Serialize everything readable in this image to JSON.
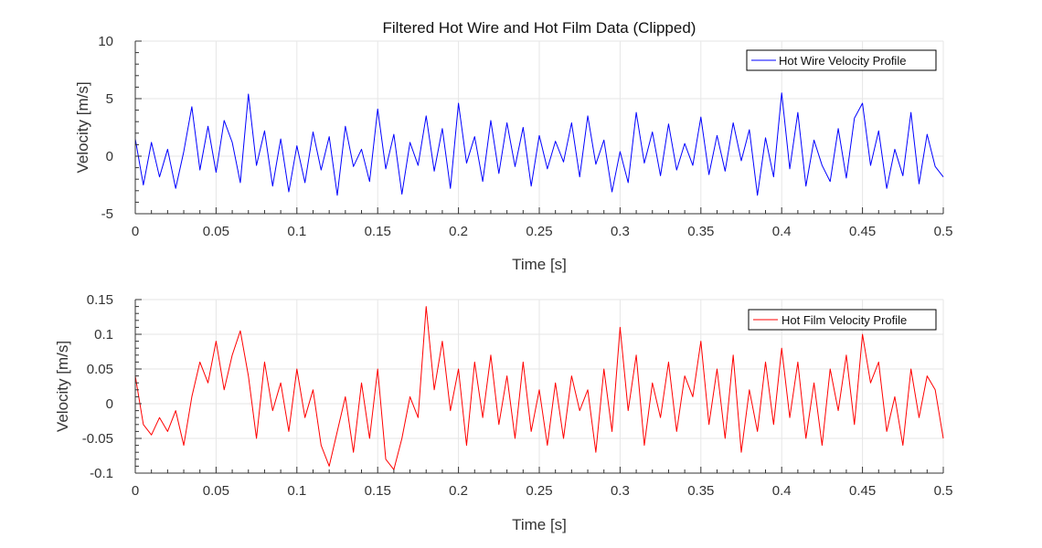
{
  "chart_data": [
    {
      "type": "line",
      "title": "Filtered Hot Wire and Hot Film Data (Clipped)",
      "xlabel": "Time [s]",
      "ylabel": "Velocity [m/s]",
      "xlim": [
        0,
        0.5
      ],
      "ylim": [
        -5,
        10
      ],
      "x_ticks": [
        "0",
        "0.05",
        "0.1",
        "0.15",
        "0.2",
        "0.25",
        "0.3",
        "0.35",
        "0.4",
        "0.45",
        "0.5"
      ],
      "y_ticks": [
        "-5",
        "0",
        "5",
        "10"
      ],
      "grid": true,
      "legend_position": "top-right",
      "series": [
        {
          "name": "Hot Wire Velocity Profile",
          "color": "#0000ff",
          "x": [
            0,
            0.005,
            0.01,
            0.015,
            0.02,
            0.025,
            0.03,
            0.035,
            0.04,
            0.045,
            0.05,
            0.055,
            0.06,
            0.065,
            0.07,
            0.075,
            0.08,
            0.085,
            0.09,
            0.095,
            0.1,
            0.105,
            0.11,
            0.115,
            0.12,
            0.125,
            0.13,
            0.135,
            0.14,
            0.145,
            0.15,
            0.155,
            0.16,
            0.165,
            0.17,
            0.175,
            0.18,
            0.185,
            0.19,
            0.195,
            0.2,
            0.205,
            0.21,
            0.215,
            0.22,
            0.225,
            0.23,
            0.235,
            0.24,
            0.245,
            0.25,
            0.255,
            0.26,
            0.265,
            0.27,
            0.275,
            0.28,
            0.285,
            0.29,
            0.295,
            0.3,
            0.305,
            0.31,
            0.315,
            0.32,
            0.325,
            0.33,
            0.335,
            0.34,
            0.345,
            0.35,
            0.355,
            0.36,
            0.365,
            0.37,
            0.375,
            0.38,
            0.385,
            0.39,
            0.395,
            0.4,
            0.405,
            0.41,
            0.415,
            0.42,
            0.425,
            0.43,
            0.435,
            0.44,
            0.445,
            0.45,
            0.455,
            0.46,
            0.465,
            0.47,
            0.475,
            0.48,
            0.485,
            0.49,
            0.495,
            0.5
          ],
          "values": [
            1.5,
            -2.5,
            1.2,
            -1.8,
            0.6,
            -2.8,
            0.4,
            4.3,
            -1.2,
            2.6,
            -1.4,
            3.1,
            1.2,
            -2.3,
            5.4,
            -0.8,
            2.2,
            -2.6,
            1.5,
            -3.1,
            0.9,
            -2.3,
            2.1,
            -1.2,
            1.7,
            -3.4,
            2.6,
            -0.9,
            0.6,
            -2.2,
            4.1,
            -1.1,
            1.9,
            -3.3,
            1.2,
            -0.8,
            3.5,
            -1.3,
            2.4,
            -2.8,
            4.6,
            -0.6,
            1.7,
            -2.2,
            3.1,
            -1.5,
            2.9,
            -0.9,
            2.5,
            -2.6,
            1.8,
            -1.1,
            1.3,
            -0.5,
            2.9,
            -1.8,
            3.5,
            -0.7,
            1.4,
            -3.1,
            0.4,
            -2.3,
            3.8,
            -0.6,
            2.1,
            -1.7,
            2.8,
            -1.2,
            1.1,
            -0.8,
            3.4,
            -1.6,
            1.8,
            -1.3,
            2.9,
            -0.4,
            2.3,
            -3.4,
            1.6,
            -1.8,
            5.5,
            -1.1,
            3.8,
            -2.6,
            1.4,
            -0.8,
            -2.2,
            2.4,
            -1.9,
            3.3,
            4.6,
            -0.8,
            2.2,
            -2.8,
            0.6,
            -1.7,
            3.8,
            -2.4,
            1.9,
            -0.9,
            -1.8
          ]
        }
      ]
    },
    {
      "type": "line",
      "title": "",
      "xlabel": "Time [s]",
      "ylabel": "Velocity [m/s]",
      "xlim": [
        0,
        0.5
      ],
      "ylim": [
        -0.1,
        0.15
      ],
      "x_ticks": [
        "0",
        "0.05",
        "0.1",
        "0.15",
        "0.2",
        "0.25",
        "0.3",
        "0.35",
        "0.4",
        "0.45",
        "0.5"
      ],
      "y_ticks": [
        "-0.1",
        "-0.05",
        "0",
        "0.05",
        "0.1",
        "0.15"
      ],
      "grid": true,
      "legend_position": "top-right",
      "series": [
        {
          "name": "Hot Film Velocity Profile",
          "color": "#ff0000",
          "x": [
            0,
            0.005,
            0.01,
            0.015,
            0.02,
            0.025,
            0.03,
            0.035,
            0.04,
            0.045,
            0.05,
            0.055,
            0.06,
            0.065,
            0.07,
            0.075,
            0.08,
            0.085,
            0.09,
            0.095,
            0.1,
            0.105,
            0.11,
            0.115,
            0.12,
            0.125,
            0.13,
            0.135,
            0.14,
            0.145,
            0.15,
            0.155,
            0.16,
            0.165,
            0.17,
            0.175,
            0.18,
            0.185,
            0.19,
            0.195,
            0.2,
            0.205,
            0.21,
            0.215,
            0.22,
            0.225,
            0.23,
            0.235,
            0.24,
            0.245,
            0.25,
            0.255,
            0.26,
            0.265,
            0.27,
            0.275,
            0.28,
            0.285,
            0.29,
            0.295,
            0.3,
            0.305,
            0.31,
            0.315,
            0.32,
            0.325,
            0.33,
            0.335,
            0.34,
            0.345,
            0.35,
            0.355,
            0.36,
            0.365,
            0.37,
            0.375,
            0.38,
            0.385,
            0.39,
            0.395,
            0.4,
            0.405,
            0.41,
            0.415,
            0.42,
            0.425,
            0.43,
            0.435,
            0.44,
            0.445,
            0.45,
            0.455,
            0.46,
            0.465,
            0.47,
            0.475,
            0.48,
            0.485,
            0.49,
            0.495,
            0.5
          ],
          "values": [
            0.04,
            -0.03,
            -0.045,
            -0.02,
            -0.04,
            -0.01,
            -0.06,
            0.01,
            0.06,
            0.03,
            0.09,
            0.02,
            0.07,
            0.105,
            0.04,
            -0.05,
            0.06,
            -0.01,
            0.03,
            -0.04,
            0.05,
            -0.02,
            0.02,
            -0.06,
            -0.09,
            -0.04,
            0.01,
            -0.07,
            0.03,
            -0.05,
            0.05,
            -0.08,
            -0.095,
            -0.05,
            0.01,
            -0.02,
            0.14,
            0.02,
            0.09,
            -0.01,
            0.05,
            -0.06,
            0.06,
            -0.02,
            0.07,
            -0.03,
            0.04,
            -0.05,
            0.06,
            -0.04,
            0.02,
            -0.06,
            0.03,
            -0.05,
            0.04,
            -0.01,
            0.02,
            -0.07,
            0.05,
            -0.04,
            0.11,
            -0.01,
            0.07,
            -0.06,
            0.03,
            -0.02,
            0.06,
            -0.04,
            0.04,
            0.01,
            0.09,
            -0.03,
            0.05,
            -0.05,
            0.07,
            -0.07,
            0.02,
            -0.04,
            0.06,
            -0.03,
            0.08,
            -0.02,
            0.06,
            -0.05,
            0.03,
            -0.06,
            0.05,
            -0.01,
            0.07,
            -0.03,
            0.1,
            0.03,
            0.06,
            -0.04,
            0.01,
            -0.06,
            0.05,
            -0.02,
            0.04,
            0.02,
            -0.05
          ]
        }
      ]
    }
  ]
}
